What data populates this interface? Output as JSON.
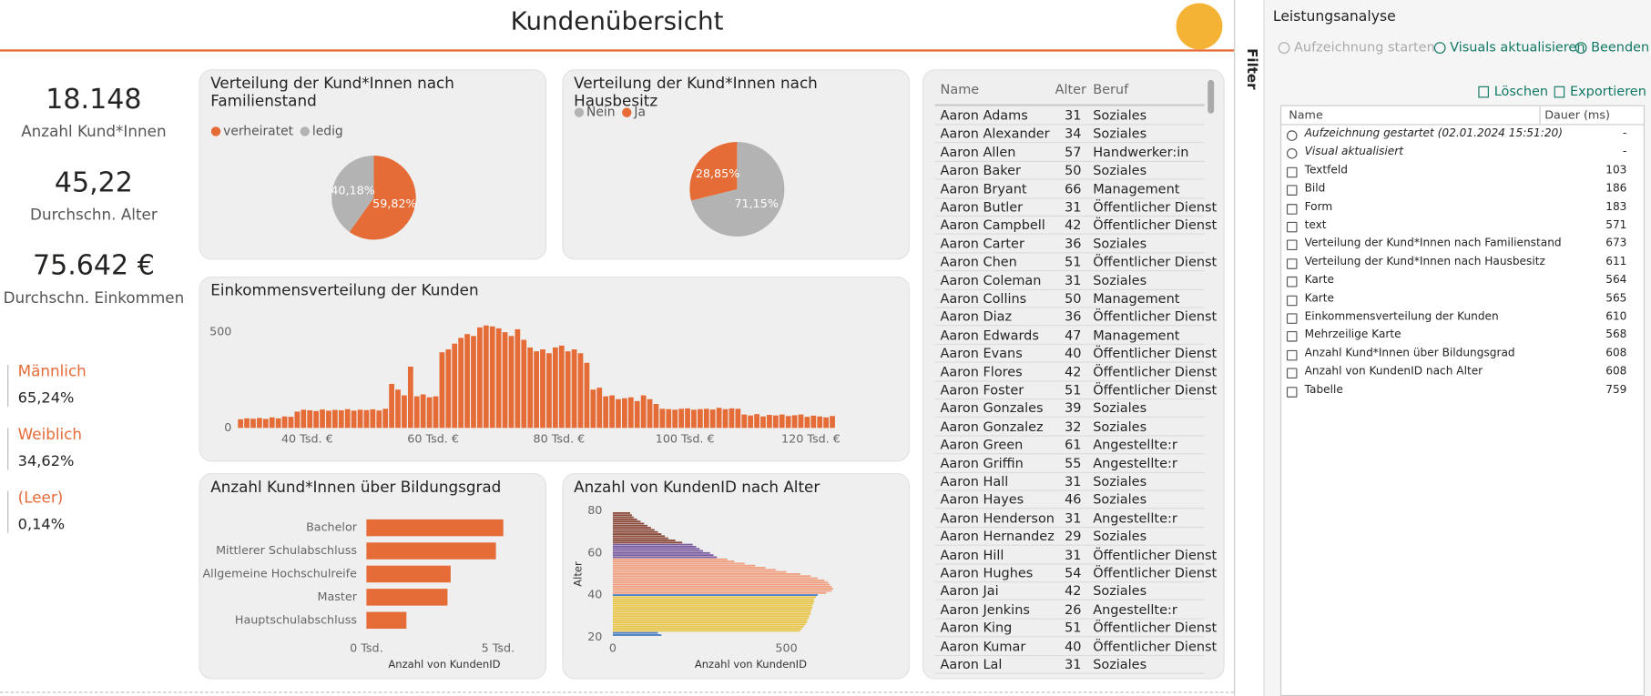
{
  "header": {
    "title": "Kundenübersicht"
  },
  "kpis": [
    {
      "value": "18.148",
      "label": "Anzahl Kund*Innen"
    },
    {
      "value": "45,22",
      "label": "Durchschn. Alter"
    },
    {
      "value": "75.642 €",
      "label": "Durchschn. Einkommen"
    }
  ],
  "gender": [
    {
      "label": "Männlich",
      "value": "65,24%"
    },
    {
      "label": "Weiblich",
      "value": "34,62%"
    },
    {
      "label": "(Leer)",
      "value": "0,14%"
    }
  ],
  "pie_marital": {
    "type": "pie",
    "title": "Verteilung der Kund*Innen nach Familienstand",
    "categories": [
      "verheiratet",
      "ledig"
    ],
    "values": [
      59.82,
      40.18
    ],
    "value_labels": [
      "59,82%",
      "40,18%"
    ],
    "colors": [
      "#e66c37",
      "#b3b3b3"
    ]
  },
  "pie_house": {
    "type": "pie",
    "title": "Verteilung der Kund*Innen nach Hausbesitz",
    "categories": [
      "Nein",
      "Ja"
    ],
    "values": [
      71.15,
      28.85
    ],
    "value_labels": [
      "71,15%",
      "28,85%"
    ],
    "colors": [
      "#b3b3b3",
      "#e66c37"
    ]
  },
  "income_histogram": {
    "type": "histogram",
    "title": "Einkommensverteilung der Kunden",
    "bins": [
      29,
      30,
      31,
      32,
      33,
      34,
      35,
      36,
      37,
      38,
      39,
      40,
      41,
      42,
      43,
      44,
      45,
      46,
      47,
      48,
      49,
      50,
      51,
      52,
      53,
      54,
      55,
      56,
      57,
      58,
      59,
      60,
      61,
      62,
      63,
      64,
      65,
      66,
      67,
      68,
      69,
      70,
      71,
      72,
      73,
      74,
      75,
      76,
      77,
      78,
      79,
      80,
      81,
      82,
      83,
      84,
      85,
      86,
      87,
      88,
      89,
      90,
      91,
      92,
      93,
      94,
      95,
      96,
      97,
      98,
      99,
      100,
      101,
      102,
      103,
      104,
      105,
      106,
      107,
      108,
      109,
      110,
      111,
      112,
      113,
      114,
      115,
      116,
      117,
      118,
      119,
      120,
      121,
      122,
      123,
      124
    ],
    "values": [
      45,
      50,
      48,
      52,
      47,
      55,
      50,
      60,
      58,
      85,
      95,
      92,
      88,
      96,
      90,
      94,
      92,
      98,
      90,
      95,
      93,
      97,
      91,
      100,
      230,
      200,
      170,
      320,
      165,
      175,
      160,
      165,
      395,
      410,
      440,
      470,
      490,
      480,
      525,
      535,
      530,
      520,
      500,
      480,
      515,
      460,
      420,
      400,
      410,
      390,
      420,
      430,
      400,
      410,
      390,
      340,
      200,
      210,
      165,
      170,
      150,
      155,
      160,
      140,
      170,
      150,
      125,
      100,
      98,
      95,
      100,
      102,
      95,
      98,
      100,
      96,
      105,
      98,
      102,
      100,
      70,
      65,
      72,
      60,
      68,
      65,
      70,
      62,
      66,
      70,
      58,
      64,
      60,
      55,
      62
    ],
    "color": "#e66c37",
    "grid": false,
    "xlim": [
      28,
      125
    ],
    "xticks": [
      {
        "value": 40,
        "label": "40 Tsd. €"
      },
      {
        "value": 60,
        "label": "60 Tsd. €"
      },
      {
        "value": 80,
        "label": "80 Tsd. €"
      },
      {
        "value": 100,
        "label": "100 Tsd. €"
      },
      {
        "value": 120,
        "label": "120 Tsd. €"
      }
    ],
    "ylim": [
      0,
      560
    ],
    "yticks": [
      0,
      500
    ]
  },
  "education_bar": {
    "type": "bar",
    "orientation": "horizontal",
    "title": "Anzahl Kund*Innen über Bildungsgrad",
    "categories": [
      "Bachelor",
      "Mittlerer Schulabschluss",
      "Allgemeine Hochschulreife",
      "Master",
      "Hauptschulabschluss"
    ],
    "values": [
      5200,
      4920,
      3200,
      3080,
      1520
    ],
    "color": "#e66c37",
    "xlim": [
      0,
      5700
    ],
    "xticks": [
      {
        "value": 0,
        "label": "0 Tsd."
      },
      {
        "value": 5000,
        "label": "5 Tsd."
      }
    ],
    "xlabel": "Anzahl von KundenID"
  },
  "age_bar": {
    "type": "bar",
    "orientation": "horizontal",
    "title": "Anzahl von KundenID nach Alter",
    "y": [
      21,
      22,
      23,
      24,
      25,
      26,
      27,
      28,
      29,
      30,
      31,
      32,
      33,
      34,
      35,
      36,
      37,
      38,
      39,
      40,
      41,
      42,
      43,
      44,
      45,
      46,
      47,
      48,
      49,
      50,
      51,
      52,
      53,
      54,
      55,
      56,
      57,
      58,
      59,
      60,
      61,
      62,
      63,
      64,
      65,
      66,
      67,
      68,
      69,
      70,
      71,
      72,
      73,
      74,
      75,
      76,
      77,
      78,
      79
    ],
    "values": [
      140,
      130,
      540,
      545,
      550,
      555,
      560,
      560,
      565,
      565,
      570,
      570,
      572,
      575,
      575,
      578,
      580,
      580,
      585,
      590,
      615,
      630,
      635,
      630,
      625,
      620,
      610,
      590,
      570,
      540,
      500,
      470,
      440,
      410,
      380,
      350,
      330,
      300,
      290,
      280,
      260,
      250,
      240,
      230,
      200,
      180,
      160,
      150,
      140,
      130,
      120,
      110,
      100,
      90,
      80,
      70,
      60,
      55,
      50
    ],
    "colors": [
      "#4a7fc1",
      "#4a7fc1",
      "#e8c547",
      "#e8c547",
      "#e8c547",
      "#e8c547",
      "#e8c547",
      "#e8c547",
      "#e8c547",
      "#e8c547",
      "#e8c547",
      "#e8c547",
      "#e8c547",
      "#e8c547",
      "#e8c547",
      "#e8c547",
      "#e8c547",
      "#e8c547",
      "#e8c547",
      "#4a7fc1",
      "#f0a080",
      "#f0a080",
      "#f0a080",
      "#f0a080",
      "#f0a080",
      "#f0a080",
      "#f0a080",
      "#f0a080",
      "#f0a080",
      "#f0a080",
      "#f0a080",
      "#f0a080",
      "#f0a080",
      "#f0a080",
      "#f0a080",
      "#f0a080",
      "#f0a080",
      "#7a5ca0",
      "#7a5ca0",
      "#7a5ca0",
      "#7a5ca0",
      "#7a5ca0",
      "#7a5ca0",
      "#7a5ca0",
      "#8b4a3a",
      "#8b4a3a",
      "#8b4a3a",
      "#8b4a3a",
      "#8b4a3a",
      "#8b4a3a",
      "#8b4a3a",
      "#8b4a3a",
      "#8b4a3a",
      "#8b4a3a",
      "#8b4a3a",
      "#8b4a3a",
      "#8b4a3a",
      "#8b4a3a",
      "#8b4a3a"
    ],
    "xlim": [
      0,
      640
    ],
    "xticks": [
      0,
      500
    ],
    "ylim": [
      20,
      80
    ],
    "yticks": [
      20,
      40,
      60,
      80
    ],
    "xlabel": "Anzahl von KundenID",
    "ylabel": "Alter"
  },
  "table": {
    "columns": [
      "Name",
      "Alter",
      "Beruf"
    ],
    "rows": [
      [
        "Aaron Adams",
        31,
        "Soziales"
      ],
      [
        "Aaron Alexander",
        34,
        "Soziales"
      ],
      [
        "Aaron Allen",
        57,
        "Handwerker:in"
      ],
      [
        "Aaron Baker",
        50,
        "Soziales"
      ],
      [
        "Aaron Bryant",
        66,
        "Management"
      ],
      [
        "Aaron Butler",
        31,
        "Öffentlicher Dienst"
      ],
      [
        "Aaron Campbell",
        42,
        "Öffentlicher Dienst"
      ],
      [
        "Aaron Carter",
        36,
        "Soziales"
      ],
      [
        "Aaron Chen",
        51,
        "Öffentlicher Dienst"
      ],
      [
        "Aaron Coleman",
        31,
        "Soziales"
      ],
      [
        "Aaron Collins",
        50,
        "Management"
      ],
      [
        "Aaron Diaz",
        36,
        "Öffentlicher Dienst"
      ],
      [
        "Aaron Edwards",
        47,
        "Management"
      ],
      [
        "Aaron Evans",
        40,
        "Öffentlicher Dienst"
      ],
      [
        "Aaron Flores",
        42,
        "Öffentlicher Dienst"
      ],
      [
        "Aaron Foster",
        51,
        "Öffentlicher Dienst"
      ],
      [
        "Aaron Gonzales",
        39,
        "Soziales"
      ],
      [
        "Aaron Gonzalez",
        32,
        "Soziales"
      ],
      [
        "Aaron Green",
        61,
        "Angestellte:r"
      ],
      [
        "Aaron Griffin",
        55,
        "Angestellte:r"
      ],
      [
        "Aaron Hall",
        31,
        "Soziales"
      ],
      [
        "Aaron Hayes",
        46,
        "Soziales"
      ],
      [
        "Aaron Henderson",
        31,
        "Angestellte:r"
      ],
      [
        "Aaron Hernandez",
        29,
        "Soziales"
      ],
      [
        "Aaron Hill",
        31,
        "Öffentlicher Dienst"
      ],
      [
        "Aaron Hughes",
        54,
        "Öffentlicher Dienst"
      ],
      [
        "Aaron Jai",
        42,
        "Soziales"
      ],
      [
        "Aaron Jenkins",
        26,
        "Angestellte:r"
      ],
      [
        "Aaron King",
        51,
        "Öffentlicher Dienst"
      ],
      [
        "Aaron Kumar",
        40,
        "Öffentlicher Dienst"
      ],
      [
        "Aaron Lal",
        31,
        "Soziales"
      ]
    ]
  },
  "filter": {
    "label": "Filter"
  },
  "performance": {
    "title": "Leistungsanalyse",
    "actions": [
      "Aufzeichnung starten",
      "Visuals aktualisieren",
      "Beenden"
    ],
    "tools": [
      "Löschen",
      "Exportieren"
    ],
    "columns": [
      "Name",
      "Dauer (ms)"
    ],
    "rows": [
      {
        "name": "Aufzeichnung gestartet (02.01.2024 15:51:20)",
        "duration": "-"
      },
      {
        "name": "Visual aktualisiert",
        "duration": "-"
      },
      {
        "name": "Textfeld",
        "duration": 103
      },
      {
        "name": "Bild",
        "duration": 186
      },
      {
        "name": "Form",
        "duration": 183
      },
      {
        "name": "text",
        "duration": 571
      },
      {
        "name": "Verteilung der Kund*Innen nach Familienstand",
        "duration": 673
      },
      {
        "name": "Verteilung der Kund*Innen nach Hausbesitz",
        "duration": 611
      },
      {
        "name": "Karte",
        "duration": 564
      },
      {
        "name": "Karte",
        "duration": 565
      },
      {
        "name": "Einkommensverteilung der Kunden",
        "duration": 610
      },
      {
        "name": "Mehrzeilige Karte",
        "duration": 568
      },
      {
        "name": "Anzahl Kund*Innen über Bildungsgrad",
        "duration": 608
      },
      {
        "name": "Anzahl von KundenID nach Alter",
        "duration": 608
      },
      {
        "name": "Tabelle",
        "duration": 759
      }
    ]
  }
}
